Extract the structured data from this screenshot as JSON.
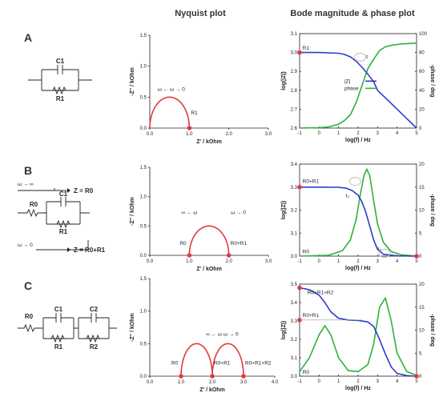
{
  "headers": {
    "nyquist": "Nyquist plot",
    "bode": "Bode magnitude & phase plot"
  },
  "colors": {
    "nyquist_curve": "#e23b3b",
    "magnitude": "#2d3cc7",
    "phase": "#2db23a",
    "marker": "#e23b3b",
    "highlight": "#bfbfbf"
  },
  "rows": [
    {
      "letter": "A",
      "circuit": {
        "labels": [
          "C1",
          "R1"
        ]
      },
      "nyquist": {
        "xlabel": "Z' / kOhm",
        "ylabel": "-Z'' / kOhm",
        "xlim": [
          0,
          3
        ],
        "ylim": [
          0,
          1.5
        ],
        "xticks": [
          "0.0",
          "1.0",
          "2.0",
          "3.0"
        ],
        "yticks": [
          "0.0",
          "0.5",
          "1.0",
          "1.5"
        ],
        "arcs": [
          [
            0,
            1
          ]
        ],
        "points": [
          {
            "x": 1,
            "label": "R1"
          }
        ],
        "annotation": "ω ← ω → 0"
      },
      "bode": {
        "xlabel": "log(f) / Hz",
        "ylabel": "log(|Z|)",
        "ylabel2": "-phase / deg",
        "xlim": [
          -1,
          5
        ],
        "ylim": [
          2.6,
          3.1
        ],
        "y2lim": [
          0,
          100
        ],
        "xticks": [
          "-1",
          "0",
          "1",
          "2",
          "3",
          "4",
          "5"
        ],
        "yticks": [
          "2.6",
          "2.7",
          "2.8",
          "2.9",
          "3.0",
          "3.1"
        ],
        "y2ticks": [
          "0",
          "20",
          "40",
          "60",
          "80",
          "100"
        ],
        "magnitude": {
          "x": [
            -1,
            0,
            1,
            1.3,
            1.6,
            1.9,
            2.2,
            2.5,
            2.8,
            3,
            4,
            5
          ],
          "y": [
            3.0,
            3.0,
            2.996,
            2.99,
            2.977,
            2.954,
            2.922,
            2.885,
            2.845,
            2.8,
            2.7,
            2.6
          ]
        },
        "phase": {
          "x": [
            -1,
            0,
            0.5,
            1,
            1.3,
            1.6,
            1.9,
            2.2,
            2.5,
            2.8,
            3.1,
            3.4,
            3.8,
            4.2,
            5
          ],
          "y": [
            0,
            0.4,
            1.3,
            4.1,
            8,
            14,
            27,
            45,
            63,
            73,
            82,
            86,
            88,
            89,
            90
          ]
        },
        "legend": [
          "|Z|",
          "phase"
        ],
        "labels": [
          {
            "text": "R1"
          },
          {
            "text": "τ"
          }
        ]
      }
    },
    {
      "letter": "B",
      "circuit": {
        "labels": [
          "C1",
          "R0",
          "R1"
        ],
        "top_text": "ω → ∞",
        "top_result": "Z = R0",
        "bottom_text": "ω → 0",
        "bottom_result": "Z = R0+R1"
      },
      "nyquist": {
        "xlabel": "Z' / kOhm",
        "ylabel": "-Z'' / kOhm",
        "xlim": [
          0,
          3
        ],
        "ylim": [
          0,
          1.5
        ],
        "xticks": [
          "0.0",
          "1.0",
          "2.0",
          "3.0"
        ],
        "yticks": [
          "0.0",
          "0.5",
          "1.0",
          "1.5"
        ],
        "arcs": [
          [
            1,
            2
          ]
        ],
        "points": [
          {
            "x": 1,
            "label": "R0"
          },
          {
            "x": 2,
            "label": "R0+R1"
          }
        ],
        "annotation_left": "∞ ← ω",
        "annotation_right": "ω → 0"
      },
      "bode": {
        "xlabel": "log(f) / Hz",
        "ylabel": "log(|Z|)",
        "ylabel2": "-phase / deg",
        "xlim": [
          -1,
          5
        ],
        "ylim": [
          3.0,
          3.4
        ],
        "y2lim": [
          0,
          20
        ],
        "xticks": [
          "-1",
          "0",
          "1",
          "2",
          "3",
          "4",
          "5"
        ],
        "yticks": [
          "3.0",
          "3.1",
          "3.2",
          "3.3",
          "3.4"
        ],
        "y2ticks": [
          "0",
          "5",
          "10",
          "15",
          "20"
        ],
        "magnitude": {
          "x": [
            -1,
            0,
            1,
            1.4,
            1.7,
            2.0,
            2.2,
            2.4,
            2.6,
            2.8,
            3.0,
            3.3,
            4,
            5
          ],
          "y": [
            3.3,
            3.3,
            3.299,
            3.295,
            3.285,
            3.265,
            3.235,
            3.19,
            3.13,
            3.07,
            3.03,
            3.008,
            3.001,
            3.0
          ]
        },
        "phase": {
          "x": [
            -1,
            0.5,
            1.2,
            1.6,
            1.9,
            2.1,
            2.3,
            2.45,
            2.6,
            2.8,
            3.0,
            3.3,
            3.7,
            4.2,
            5
          ],
          "y": [
            0,
            0.2,
            1.2,
            3.5,
            8,
            13,
            17.5,
            18.9,
            17.5,
            12,
            7,
            3,
            1,
            0.3,
            0
          ]
        },
        "labels": [
          {
            "text": "R0+R1"
          },
          {
            "text": "R0"
          },
          {
            "text": "τ₁"
          },
          {
            "text": "τ₂"
          }
        ]
      }
    },
    {
      "letter": "C",
      "circuit": {
        "labels": [
          "R0",
          "C1",
          "C2",
          "R1",
          "R2"
        ]
      },
      "nyquist": {
        "xlabel": "Z' / kOhm",
        "ylabel": "-Z'' / kOhm",
        "xlim": [
          0,
          4
        ],
        "ylim": [
          0,
          1.5
        ],
        "xticks": [
          "0.0",
          "1.0",
          "2.0",
          "3.0",
          "4.0"
        ],
        "yticks": [
          "0.0",
          "0.5",
          "1.0",
          "1.5"
        ],
        "arcs": [
          [
            1,
            2
          ],
          [
            2,
            3
          ]
        ],
        "points": [
          {
            "x": 1,
            "label": "R0"
          },
          {
            "x": 2,
            "label": "R0+R1"
          },
          {
            "x": 3,
            "label": "R0+R1+R2"
          }
        ],
        "annotation": "∞ ← ω   ω → 0"
      },
      "bode": {
        "xlabel": "log(f) / Hz",
        "ylabel": "log(|Z|)",
        "ylabel2": "-phase / deg",
        "xlim": [
          -1,
          5
        ],
        "ylim": [
          3.0,
          3.5
        ],
        "y2lim": [
          0,
          20
        ],
        "xticks": [
          "-1",
          "0",
          "1",
          "2",
          "3",
          "4",
          "5"
        ],
        "yticks": [
          "3.0",
          "3.1",
          "3.2",
          "3.3",
          "3.4",
          "3.5"
        ],
        "y2ticks": [
          "0",
          "5",
          "10",
          "15",
          "20"
        ],
        "magnitude": {
          "x": [
            -1,
            -0.5,
            0,
            0.3,
            0.6,
            1,
            1.5,
            2,
            2.5,
            2.8,
            3.1,
            3.4,
            3.7,
            4,
            4.5,
            5
          ],
          "y": [
            3.48,
            3.47,
            3.44,
            3.4,
            3.35,
            3.315,
            3.305,
            3.303,
            3.295,
            3.27,
            3.2,
            3.12,
            3.05,
            3.015,
            3.003,
            3.0
          ]
        },
        "phase": {
          "x": [
            -1,
            -0.5,
            0,
            0.3,
            0.6,
            1,
            1.5,
            2,
            2.5,
            2.8,
            3.1,
            3.4,
            3.7,
            4,
            4.5,
            5
          ],
          "y": [
            1,
            4,
            9,
            11,
            9,
            4,
            1.2,
            1,
            2.5,
            7,
            15,
            17,
            12,
            5,
            1,
            0.2
          ]
        },
        "labels": [
          {
            "text": "R0+R1+R2"
          },
          {
            "text": "R0+R1"
          },
          {
            "text": "R0"
          }
        ]
      }
    }
  ]
}
